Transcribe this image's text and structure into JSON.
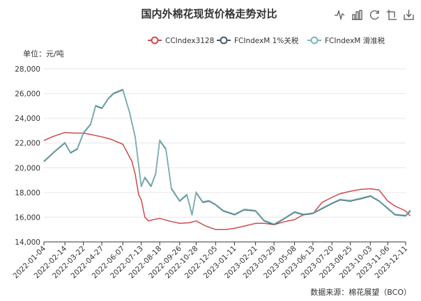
{
  "title": "国内外棉花现货价格走势对比",
  "unit_label": "单位：元/吨",
  "source_label": "数据来源：棉花展望（BCO）",
  "toolbar": [
    {
      "name": "line-chart-icon"
    },
    {
      "name": "bar-chart-icon"
    },
    {
      "name": "restore-icon"
    },
    {
      "name": "data-view-icon"
    },
    {
      "name": "save-image-icon"
    }
  ],
  "colors": {
    "cc": "#d0474b",
    "fc1": "#3f5a6b",
    "fc2": "#79b5b8",
    "grid": "#e6e6e6",
    "axis": "#333333"
  },
  "chart_data": {
    "type": "line",
    "title": "国内外棉花现货价格走势对比",
    "ylabel": "单位：元/吨",
    "xlabel": "",
    "ylim": [
      14000,
      28000
    ],
    "yticks": [
      14000,
      16000,
      18000,
      20000,
      22000,
      24000,
      26000,
      28000
    ],
    "ytick_labels": [
      "14,000",
      "16,000",
      "18,000",
      "20,000",
      "22,000",
      "24,000",
      "26,000",
      "28,000"
    ],
    "xticks": [
      "2022-01-04",
      "2022-02-14",
      "2022-03-22",
      "2022-04-27",
      "2022-06-07",
      "2022-07-13",
      "2022-08-18",
      "2022-09-26",
      "2022-10-28",
      "2022-12-05",
      "2023-01-11",
      "2023-02-21",
      "2023-03-29",
      "2023-05-08",
      "2023-06-13",
      "2023-07-20",
      "2023-08-25",
      "2023-10-03",
      "2023-11-06",
      "2023-12-11"
    ],
    "grid": true,
    "legend_position": "top-right",
    "series": [
      {
        "name": "CCIndex3128",
        "color": "#d0474b",
        "x": [
          "2022-01-04",
          "2022-01-20",
          "2022-02-14",
          "2022-03-05",
          "2022-03-22",
          "2022-04-10",
          "2022-04-27",
          "2022-05-15",
          "2022-06-07",
          "2022-06-25",
          "2022-07-01",
          "2022-07-08",
          "2022-07-13",
          "2022-07-20",
          "2022-07-27",
          "2022-08-05",
          "2022-08-18",
          "2022-09-05",
          "2022-09-26",
          "2022-10-15",
          "2022-10-28",
          "2022-11-15",
          "2022-12-05",
          "2022-12-25",
          "2023-01-11",
          "2023-02-01",
          "2023-02-21",
          "2023-03-10",
          "2023-03-29",
          "2023-04-20",
          "2023-05-08",
          "2023-05-25",
          "2023-06-13",
          "2023-07-01",
          "2023-07-20",
          "2023-08-05",
          "2023-08-25",
          "2023-09-15",
          "2023-10-03",
          "2023-10-20",
          "2023-11-06",
          "2023-11-20",
          "2023-12-01",
          "2023-12-11",
          "2023-12-20"
        ],
        "y": [
          22200,
          22500,
          22850,
          22800,
          22800,
          22650,
          22500,
          22300,
          21900,
          20500,
          19500,
          17800,
          17400,
          16000,
          15700,
          15800,
          15900,
          15700,
          15500,
          15550,
          15700,
          15300,
          15000,
          15000,
          15100,
          15300,
          15500,
          15500,
          15400,
          15650,
          15800,
          16200,
          16300,
          17200,
          17600,
          17900,
          18100,
          18250,
          18300,
          18200,
          17300,
          16900,
          16700,
          16500,
          16100
        ]
      },
      {
        "name": "FCIndexM 1%关税",
        "color": "#3f5a6b",
        "x": [
          "2022-01-04",
          "2022-01-25",
          "2022-02-14",
          "2022-02-25",
          "2022-03-10",
          "2022-03-22",
          "2022-04-05",
          "2022-04-15",
          "2022-04-27",
          "2022-05-10",
          "2022-05-20",
          "2022-06-07",
          "2022-06-20",
          "2022-07-01",
          "2022-07-13",
          "2022-07-20",
          "2022-08-01",
          "2022-08-10",
          "2022-08-18",
          "2022-08-30",
          "2022-09-10",
          "2022-09-26",
          "2022-10-10",
          "2022-10-20",
          "2022-10-28",
          "2022-11-10",
          "2022-11-22",
          "2022-12-05",
          "2022-12-20",
          "2023-01-11",
          "2023-01-30",
          "2023-02-21",
          "2023-03-10",
          "2023-03-29",
          "2023-04-15",
          "2023-05-08",
          "2023-05-25",
          "2023-06-13",
          "2023-07-01",
          "2023-07-20",
          "2023-08-05",
          "2023-08-25",
          "2023-09-15",
          "2023-10-03",
          "2023-10-20",
          "2023-11-06",
          "2023-11-20",
          "2023-12-11",
          "2023-12-20"
        ],
        "y": [
          20500,
          21300,
          22000,
          21200,
          21500,
          22800,
          23500,
          25000,
          24800,
          25600,
          26000,
          26300,
          24500,
          22500,
          18500,
          19200,
          18500,
          19500,
          22200,
          21500,
          18300,
          17300,
          17800,
          16200,
          18000,
          17200,
          17300,
          17000,
          16500,
          16200,
          16600,
          16500,
          15700,
          15400,
          15800,
          16400,
          16200,
          16300,
          16700,
          17100,
          17400,
          17300,
          17500,
          17700,
          17300,
          16700,
          16200,
          16100,
          16500
        ]
      },
      {
        "name": "FCIndexM 滑准税",
        "color": "#79b5b8",
        "x": [
          "2022-01-04",
          "2022-01-25",
          "2022-02-14",
          "2022-02-25",
          "2022-03-10",
          "2022-03-22",
          "2022-04-05",
          "2022-04-15",
          "2022-04-27",
          "2022-05-10",
          "2022-05-20",
          "2022-06-07",
          "2022-06-20",
          "2022-07-01",
          "2022-07-13",
          "2022-07-20",
          "2022-08-01",
          "2022-08-10",
          "2022-08-18",
          "2022-08-30",
          "2022-09-10",
          "2022-09-26",
          "2022-10-10",
          "2022-10-20",
          "2022-10-28",
          "2022-11-10",
          "2022-11-22",
          "2022-12-05",
          "2022-12-20",
          "2023-01-11",
          "2023-01-30",
          "2023-02-21",
          "2023-03-10",
          "2023-03-29",
          "2023-04-15",
          "2023-05-08",
          "2023-05-25",
          "2023-06-13",
          "2023-07-01",
          "2023-07-20",
          "2023-08-05",
          "2023-08-25",
          "2023-09-15",
          "2023-10-03",
          "2023-10-20",
          "2023-11-06",
          "2023-11-20",
          "2023-12-11",
          "2023-12-20"
        ],
        "y": [
          20550,
          21350,
          22050,
          21250,
          21550,
          22850,
          23550,
          25050,
          24850,
          25650,
          26050,
          26350,
          24550,
          22550,
          18550,
          19250,
          18550,
          19550,
          22250,
          21550,
          18350,
          17350,
          17850,
          16250,
          18050,
          17250,
          17350,
          17050,
          16550,
          16250,
          16650,
          16550,
          15750,
          15450,
          15850,
          16450,
          16250,
          16350,
          16750,
          17150,
          17450,
          17350,
          17550,
          17750,
          17350,
          16750,
          16250,
          16150,
          16600
        ]
      }
    ]
  }
}
